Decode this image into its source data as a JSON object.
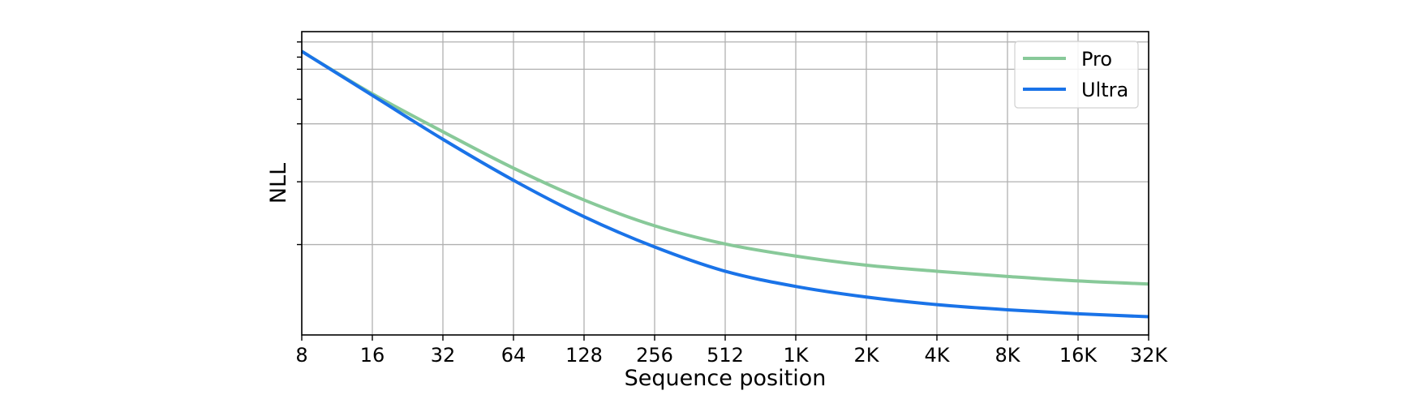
{
  "chart_data": {
    "type": "line",
    "xlabel": "Sequence position",
    "ylabel": "NLL",
    "x_scale": "log2",
    "x_ticks": [
      8,
      16,
      32,
      64,
      128,
      256,
      512,
      1024,
      2048,
      4096,
      8192,
      16384,
      32768
    ],
    "x_tick_labels": [
      "8",
      "16",
      "32",
      "64",
      "128",
      "256",
      "512",
      "1K",
      "2K",
      "4K",
      "8K",
      "16K",
      "32K"
    ],
    "xlim": [
      8,
      32768
    ],
    "y_tick_labels_shown": false,
    "grid": true,
    "legend_position": "top-right",
    "series": [
      {
        "name": "Pro",
        "color": "#88c999",
        "x": [
          8,
          16,
          32,
          64,
          128,
          256,
          512,
          1024,
          2048,
          4096,
          8192,
          16384,
          32768
        ],
        "y": [
          0.935,
          0.795,
          0.67,
          0.55,
          0.445,
          0.36,
          0.3,
          0.26,
          0.23,
          0.21,
          0.193,
          0.178,
          0.168
        ]
      },
      {
        "name": "Ultra",
        "color": "#1a73e8",
        "x": [
          8,
          16,
          32,
          64,
          128,
          256,
          512,
          1024,
          2048,
          4096,
          8192,
          16384,
          32768
        ],
        "y": [
          0.935,
          0.79,
          0.645,
          0.51,
          0.39,
          0.29,
          0.21,
          0.16,
          0.125,
          0.1,
          0.083,
          0.07,
          0.06
        ]
      }
    ]
  }
}
